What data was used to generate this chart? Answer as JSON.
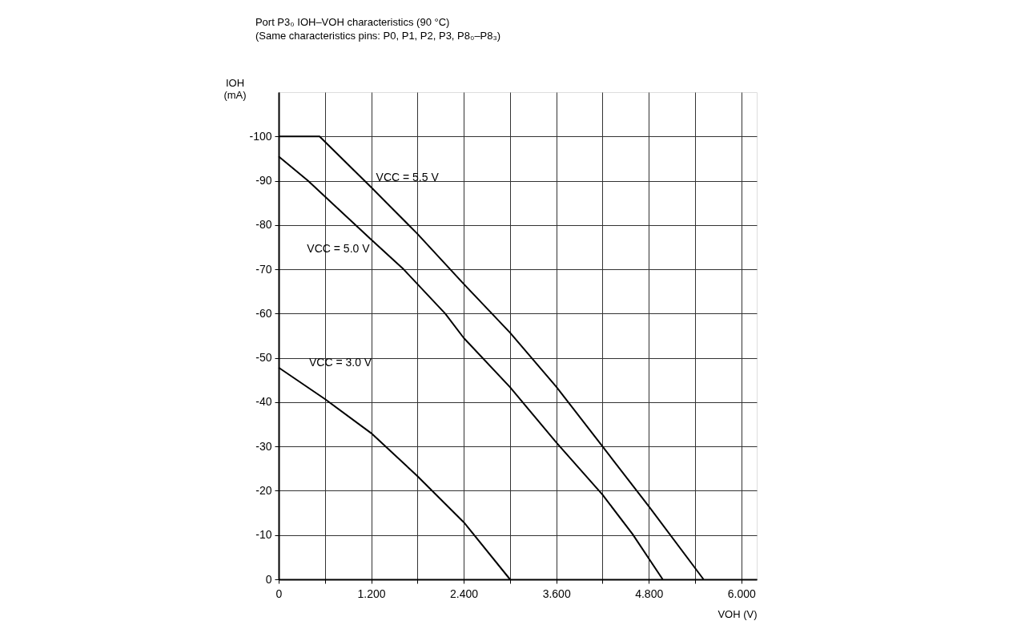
{
  "chart_data": {
    "type": "line",
    "title": "Port P3₀ IOH–VOH characteristics (90 °C)",
    "subtitle": "(Same characteristics pins: P0, P1, P2, P3, P8₀–P8₃)",
    "xlabel": "VOH (V)",
    "ylabel": "IOH\n(mA)",
    "series": [
      {
        "name": "VCC = 5.5 V",
        "color": "#000000",
        "x": [
          0,
          0.53,
          1.2,
          1.8,
          2.4,
          3.0,
          3.6,
          4.2,
          4.8,
          5.51
        ],
        "values": [
          -100,
          -100,
          -88.5,
          -78,
          -66.7,
          -55.7,
          -43.5,
          -30,
          -16.5,
          0
        ]
      },
      {
        "name": "VCC = 5.0 V",
        "color": "#000000",
        "x": [
          0,
          0.38,
          1.2,
          1.62,
          2.16,
          2.4,
          3.0,
          3.6,
          4.2,
          4.59,
          4.98
        ],
        "values": [
          -95.5,
          -90,
          -76.7,
          -70,
          -60,
          -54.5,
          -43.4,
          -30.9,
          -19.1,
          -10.2,
          0
        ]
      },
      {
        "name": "VCC = 3.0 V",
        "color": "#000000",
        "x": [
          0,
          0.6,
          1.2,
          1.8,
          2.4,
          3.0
        ],
        "values": [
          -47.8,
          -40.7,
          -33,
          -23.3,
          -12.9,
          0
        ]
      }
    ],
    "xlim": [
      0,
      6.2
    ],
    "ylim": [
      0,
      -110
    ],
    "xticks": [
      0,
      {
        "value": 0.6,
        "label": null
      },
      {
        "value": 1.2,
        "label": "1.200"
      },
      {
        "value": 1.8,
        "label": null
      },
      {
        "value": 2.4,
        "label": "2.400"
      },
      {
        "value": 3.0,
        "label": null
      },
      {
        "value": 3.6,
        "label": "3.600"
      },
      {
        "value": 4.2,
        "label": null
      },
      {
        "value": 4.8,
        "label": "4.800"
      },
      {
        "value": 5.4,
        "label": null
      },
      {
        "value": 6.0,
        "label": "6.000"
      }
    ],
    "yticks": [
      0,
      -10,
      -20,
      -30,
      -40,
      -50,
      -60,
      -70,
      -80,
      -90,
      -100
    ],
    "grid": true,
    "marker": "none",
    "line_style": "solid"
  }
}
